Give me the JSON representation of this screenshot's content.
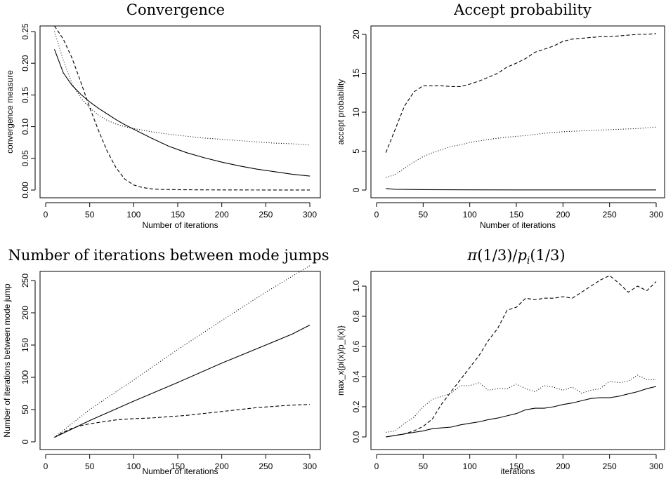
{
  "chart_data": [
    {
      "type": "line",
      "title": "Convergence",
      "xlabel": "Number of iterations",
      "ylabel": "convergence measure",
      "xlim": [
        0,
        300
      ],
      "ylim": [
        0,
        0.25
      ],
      "xticks": [
        0,
        50,
        100,
        150,
        200,
        250,
        300
      ],
      "yticks": [
        0.0,
        0.05,
        0.1,
        0.15,
        0.2,
        0.25
      ],
      "ytick_labels": [
        "0.00",
        "0.05",
        "0.10",
        "0.15",
        "0.20",
        "0.25"
      ],
      "grid": false,
      "series": [
        {
          "style": "solid",
          "x": [
            10,
            20,
            30,
            40,
            50,
            60,
            70,
            80,
            90,
            100,
            120,
            140,
            160,
            180,
            200,
            220,
            240,
            260,
            280,
            300
          ],
          "y": [
            0.222,
            0.185,
            0.165,
            0.151,
            0.139,
            0.129,
            0.12,
            0.111,
            0.103,
            0.096,
            0.082,
            0.069,
            0.059,
            0.051,
            0.044,
            0.038,
            0.033,
            0.029,
            0.025,
            0.022
          ]
        },
        {
          "style": "dashed",
          "x": [
            10,
            20,
            30,
            40,
            50,
            60,
            70,
            80,
            90,
            100,
            110,
            120,
            130,
            140,
            150,
            175,
            200,
            250,
            300
          ],
          "y": [
            0.259,
            0.238,
            0.208,
            0.17,
            0.13,
            0.094,
            0.061,
            0.035,
            0.017,
            0.008,
            0.004,
            0.002,
            0.001,
            0.0008,
            0.0005,
            0.0003,
            0.0002,
            0.0001,
            0.0001
          ]
        },
        {
          "style": "dotted",
          "x": [
            10,
            20,
            30,
            40,
            50,
            60,
            70,
            80,
            90,
            100,
            120,
            140,
            160,
            180,
            200,
            220,
            240,
            260,
            280,
            300
          ],
          "y": [
            0.25,
            0.205,
            0.168,
            0.145,
            0.13,
            0.118,
            0.11,
            0.104,
            0.1,
            0.097,
            0.092,
            0.088,
            0.085,
            0.082,
            0.08,
            0.078,
            0.076,
            0.074,
            0.073,
            0.071
          ]
        }
      ]
    },
    {
      "type": "line",
      "title": "Accept probability",
      "xlabel": "Number of iterations",
      "ylabel": "accept probability",
      "xlim": [
        0,
        300
      ],
      "ylim": [
        0,
        20
      ],
      "xticks": [
        0,
        50,
        100,
        150,
        200,
        250,
        300
      ],
      "yticks": [
        0,
        5,
        10,
        15,
        20
      ],
      "ytick_labels": [
        "0",
        "5",
        "10",
        "15",
        "20"
      ],
      "grid": false,
      "series": [
        {
          "style": "solid",
          "x": [
            10,
            20,
            30,
            50,
            100,
            150,
            200,
            250,
            300
          ],
          "y": [
            0.2,
            0.1,
            0.08,
            0.05,
            0.03,
            0.02,
            0.02,
            0.02,
            0.02
          ]
        },
        {
          "style": "dashed",
          "x": [
            10,
            20,
            30,
            40,
            50,
            60,
            70,
            80,
            90,
            100,
            110,
            120,
            130,
            140,
            150,
            160,
            170,
            180,
            190,
            200,
            210,
            220,
            230,
            240,
            250,
            260,
            270,
            280,
            290,
            300
          ],
          "y": [
            4.8,
            7.8,
            10.8,
            12.6,
            13.4,
            13.4,
            13.4,
            13.3,
            13.3,
            13.6,
            14.0,
            14.5,
            15.0,
            15.8,
            16.3,
            16.9,
            17.7,
            18.1,
            18.5,
            19.1,
            19.4,
            19.5,
            19.6,
            19.7,
            19.7,
            19.8,
            19.9,
            20.0,
            20.0,
            20.1
          ]
        },
        {
          "style": "dotted",
          "x": [
            10,
            20,
            30,
            40,
            50,
            60,
            70,
            80,
            90,
            100,
            120,
            140,
            160,
            180,
            200,
            220,
            240,
            260,
            280,
            300
          ],
          "y": [
            1.6,
            2.0,
            2.8,
            3.6,
            4.3,
            4.8,
            5.2,
            5.6,
            5.8,
            6.1,
            6.5,
            6.8,
            7.0,
            7.3,
            7.5,
            7.6,
            7.7,
            7.8,
            7.9,
            8.1
          ]
        }
      ]
    },
    {
      "type": "line",
      "title": "Number of iterations between mode jumps",
      "xlabel": "Number of iterations",
      "ylabel": "Number of iterations between mode jump",
      "xlim": [
        0,
        300
      ],
      "ylim": [
        0,
        250
      ],
      "xticks": [
        0,
        50,
        100,
        150,
        200,
        250,
        300
      ],
      "yticks": [
        0,
        50,
        100,
        150,
        200,
        250
      ],
      "ytick_labels": [
        "0",
        "50",
        "100",
        "150",
        "200",
        "250"
      ],
      "grid": false,
      "series": [
        {
          "style": "solid",
          "x": [
            10,
            50,
            100,
            150,
            200,
            250,
            280,
            300
          ],
          "y": [
            7,
            33,
            63,
            92,
            122,
            150,
            167,
            181
          ]
        },
        {
          "style": "dashed",
          "x": [
            10,
            20,
            30,
            40,
            50,
            60,
            70,
            80,
            90,
            100,
            120,
            140,
            160,
            180,
            200,
            220,
            240,
            260,
            280,
            300
          ],
          "y": [
            7,
            15,
            21,
            25,
            28,
            30,
            32,
            34,
            35,
            36,
            37,
            39,
            41,
            44,
            47,
            50,
            53,
            55,
            57,
            58
          ]
        },
        {
          "style": "dotted",
          "x": [
            10,
            50,
            100,
            150,
            200,
            250,
            300
          ],
          "y": [
            7,
            50,
            96,
            143,
            188,
            232,
            273
          ]
        }
      ]
    },
    {
      "type": "line",
      "title": "π(1/3)/p_i(1/3)",
      "xlabel": "iterations",
      "ylabel": "max_x{pi(x)/p_i(x)}",
      "xlim": [
        0,
        300
      ],
      "ylim": [
        0,
        1.0
      ],
      "xticks": [
        0,
        50,
        100,
        150,
        200,
        250,
        300
      ],
      "yticks": [
        0.0,
        0.2,
        0.4,
        0.6,
        0.8,
        1.0
      ],
      "ytick_labels": [
        "0.0",
        "0.2",
        "0.4",
        "0.6",
        "0.8",
        "1.0"
      ],
      "grid": false,
      "series": [
        {
          "style": "solid",
          "x": [
            10,
            20,
            30,
            40,
            50,
            60,
            70,
            80,
            90,
            100,
            110,
            120,
            130,
            140,
            150,
            160,
            170,
            180,
            190,
            200,
            210,
            220,
            230,
            240,
            250,
            260,
            270,
            280,
            290,
            300
          ],
          "y": [
            0.0,
            0.01,
            0.02,
            0.03,
            0.04,
            0.055,
            0.06,
            0.065,
            0.08,
            0.09,
            0.1,
            0.115,
            0.125,
            0.14,
            0.155,
            0.18,
            0.19,
            0.19,
            0.2,
            0.215,
            0.225,
            0.24,
            0.255,
            0.26,
            0.26,
            0.27,
            0.285,
            0.3,
            0.32,
            0.335
          ]
        },
        {
          "style": "dashed",
          "x": [
            10,
            20,
            30,
            40,
            50,
            60,
            70,
            80,
            90,
            100,
            110,
            120,
            130,
            140,
            150,
            160,
            170,
            180,
            190,
            200,
            210,
            220,
            230,
            240,
            250,
            260,
            270,
            280,
            290,
            300
          ],
          "y": [
            0.0,
            0.01,
            0.02,
            0.04,
            0.07,
            0.12,
            0.22,
            0.3,
            0.38,
            0.46,
            0.54,
            0.64,
            0.72,
            0.84,
            0.86,
            0.92,
            0.91,
            0.92,
            0.92,
            0.93,
            0.92,
            0.96,
            1.0,
            1.04,
            1.07,
            1.02,
            0.96,
            1.0,
            0.97,
            1.03
          ]
        },
        {
          "style": "dotted",
          "x": [
            10,
            20,
            30,
            40,
            50,
            60,
            70,
            80,
            90,
            100,
            110,
            120,
            130,
            140,
            150,
            160,
            170,
            180,
            190,
            200,
            210,
            220,
            230,
            240,
            250,
            260,
            270,
            280,
            290,
            300
          ],
          "y": [
            0.03,
            0.04,
            0.09,
            0.13,
            0.2,
            0.25,
            0.27,
            0.29,
            0.34,
            0.34,
            0.36,
            0.31,
            0.32,
            0.32,
            0.35,
            0.32,
            0.3,
            0.34,
            0.33,
            0.31,
            0.33,
            0.29,
            0.31,
            0.32,
            0.37,
            0.36,
            0.37,
            0.41,
            0.38,
            0.38
          ]
        }
      ]
    }
  ]
}
